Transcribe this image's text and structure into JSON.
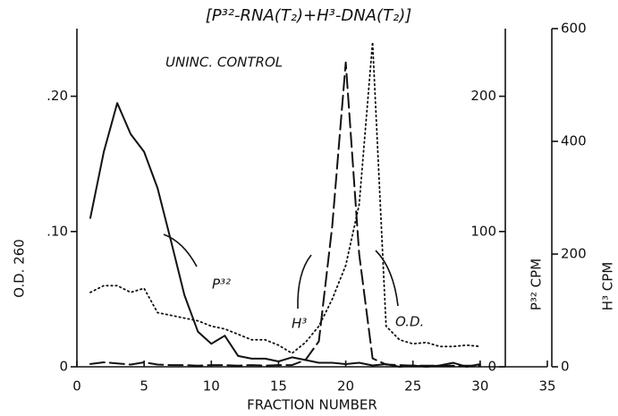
{
  "chart_data": {
    "type": "line",
    "title": "[P³²-RNA(T₂)+H³-DNA(T₂)]",
    "subtitle": "UNINC. CONTROL",
    "x_label": "FRACTION NUMBER",
    "y_label": "O.D. 260",
    "y2_label": "P³² CPM",
    "y3_label": "H³ CPM",
    "x": [
      1,
      2,
      3,
      4,
      5,
      6,
      7,
      8,
      9,
      10,
      11,
      12,
      13,
      14,
      15,
      16,
      17,
      18,
      19,
      20,
      21,
      22,
      23,
      24,
      25,
      26,
      27,
      28,
      29,
      30
    ],
    "xlim": [
      0,
      35
    ],
    "xticks": [
      0,
      5,
      10,
      15,
      20,
      25,
      30,
      35
    ],
    "ylim": [
      0,
      0.25
    ],
    "yticks": [
      0,
      {
        "value": 0.1,
        "label": ".10"
      },
      {
        "value": 0.2,
        "label": ".20"
      }
    ],
    "y2lim": [
      0,
      250
    ],
    "y2ticks": [
      0,
      100,
      200
    ],
    "y3lim": [
      0,
      600
    ],
    "y3ticks": [
      0,
      200,
      400,
      600
    ],
    "series": [
      {
        "name": "P³²",
        "axis": "y2",
        "color": "#111",
        "dash": "solid",
        "values": [
          110,
          159,
          195,
          172,
          159,
          132,
          93,
          53,
          26,
          17,
          23,
          8,
          6,
          6,
          4,
          7,
          5,
          3,
          3,
          2,
          3,
          1,
          2,
          0,
          1,
          0,
          1,
          3,
          0,
          2
        ]
      },
      {
        "name": "H³",
        "axis": "y3",
        "color": "#111",
        "dash": "dashed",
        "values": [
          5,
          8,
          6,
          4,
          8,
          4,
          3,
          3,
          2,
          3,
          3,
          2,
          3,
          2,
          3,
          3,
          12,
          45,
          250,
          540,
          200,
          15,
          4,
          3,
          2,
          2,
          2,
          2,
          2,
          2
        ]
      },
      {
        "name": "O.D.",
        "axis": "y",
        "color": "#111",
        "dash": "dotted",
        "values": [
          0.055,
          0.06,
          0.06,
          0.055,
          0.058,
          0.04,
          0.038,
          0.036,
          0.034,
          0.03,
          0.028,
          0.024,
          0.02,
          0.02,
          0.016,
          0.01,
          0.018,
          0.03,
          0.05,
          0.075,
          0.12,
          0.24,
          0.03,
          0.02,
          0.017,
          0.018,
          0.015,
          0.015,
          0.016,
          0.015
        ]
      }
    ]
  }
}
